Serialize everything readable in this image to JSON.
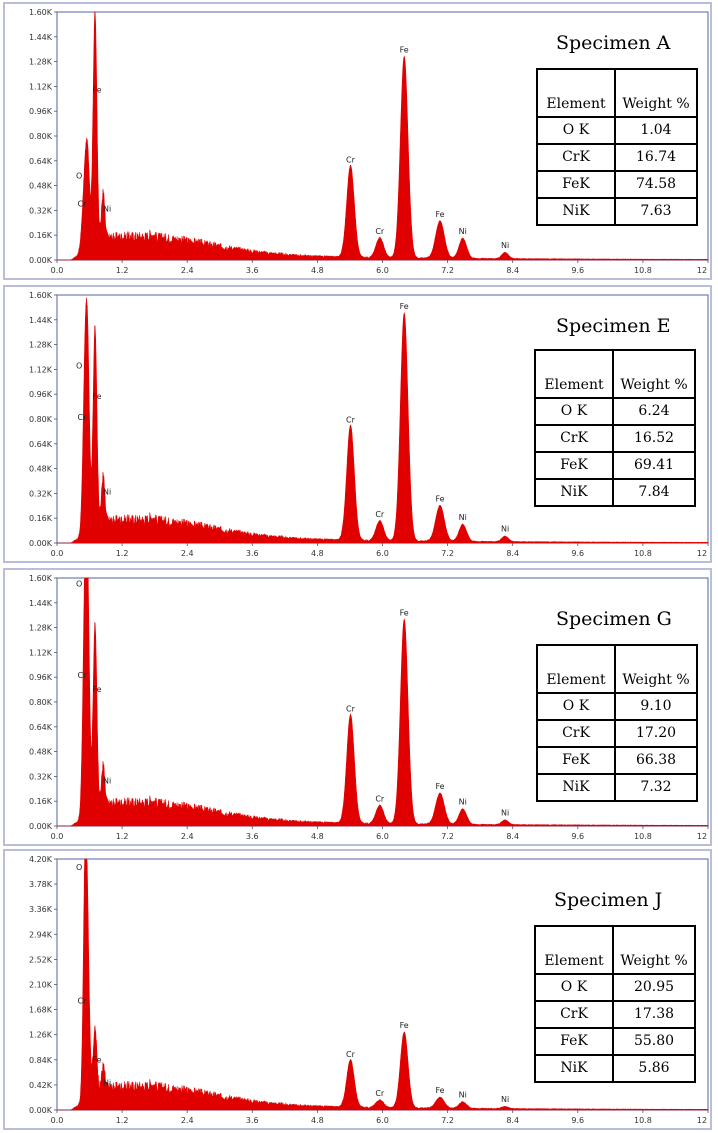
{
  "chart_data": [
    {
      "type": "area",
      "title": "Specimen A",
      "x_ticks": [
        "0.0",
        "1.2",
        "2.4",
        "3.6",
        "4.8",
        "6.0",
        "7.2",
        "8.4",
        "9.6",
        "10.8",
        "12"
      ],
      "y_ticks": [
        "0.00K",
        "0.16K",
        "0.32K",
        "0.48K",
        "0.64K",
        "0.80K",
        "0.96K",
        "1.12K",
        "1.28K",
        "1.44K",
        "1.60K"
      ],
      "xlim": [
        0,
        12
      ],
      "ylim": [
        0,
        1600
      ],
      "spectrum_color": "#e00000",
      "peaks": [
        {
          "label": "O",
          "x": 0.52,
          "y": 460,
          "w": 0.05
        },
        {
          "label": "Cr",
          "x": 0.57,
          "y": 370,
          "w": 0.04
        },
        {
          "label": "Fe",
          "x": 0.7,
          "y": 1500,
          "w": 0.035
        },
        {
          "label": "Ni",
          "x": 0.85,
          "y": 300,
          "w": 0.03
        },
        {
          "label": "Cr",
          "x": 5.41,
          "y": 590,
          "w": 0.07
        },
        {
          "label": "Cr",
          "x": 5.95,
          "y": 130,
          "w": 0.07
        },
        {
          "label": "Fe",
          "x": 6.4,
          "y": 1300,
          "w": 0.07
        },
        {
          "label": "Fe",
          "x": 7.06,
          "y": 240,
          "w": 0.08
        },
        {
          "label": "Ni",
          "x": 7.48,
          "y": 130,
          "w": 0.07
        },
        {
          "label": "Ni",
          "x": 8.26,
          "y": 40,
          "w": 0.06
        }
      ],
      "table": {
        "headers": [
          "Element",
          "Weight %"
        ],
        "rows": [
          [
            "O K",
            "1.04"
          ],
          [
            "CrK",
            "16.74"
          ],
          [
            "FeK",
            "74.58"
          ],
          [
            "NiK",
            "7.63"
          ]
        ]
      }
    },
    {
      "type": "area",
      "title": "Specimen E",
      "x_ticks": [
        "0.0",
        "1.2",
        "2.4",
        "3.6",
        "4.8",
        "6.0",
        "7.2",
        "8.4",
        "9.6",
        "10.8",
        "12"
      ],
      "y_ticks": [
        "0.00K",
        "0.16K",
        "0.32K",
        "0.48K",
        "0.64K",
        "0.80K",
        "0.96K",
        "1.12K",
        "1.28K",
        "1.44K",
        "1.60K"
      ],
      "xlim": [
        0,
        12
      ],
      "ylim": [
        0,
        1600
      ],
      "spectrum_color": "#e00000",
      "peaks": [
        {
          "label": "O",
          "x": 0.52,
          "y": 1060,
          "w": 0.04
        },
        {
          "label": "Cr",
          "x": 0.57,
          "y": 820,
          "w": 0.035
        },
        {
          "label": "Fe",
          "x": 0.7,
          "y": 1290,
          "w": 0.035
        },
        {
          "label": "Ni",
          "x": 0.85,
          "y": 300,
          "w": 0.03
        },
        {
          "label": "Cr",
          "x": 5.41,
          "y": 740,
          "w": 0.07
        },
        {
          "label": "Cr",
          "x": 5.95,
          "y": 130,
          "w": 0.07
        },
        {
          "label": "Fe",
          "x": 6.4,
          "y": 1470,
          "w": 0.07
        },
        {
          "label": "Fe",
          "x": 7.06,
          "y": 230,
          "w": 0.08
        },
        {
          "label": "Ni",
          "x": 7.48,
          "y": 110,
          "w": 0.07
        },
        {
          "label": "Ni",
          "x": 8.26,
          "y": 35,
          "w": 0.06
        }
      ],
      "table": {
        "headers": [
          "Element",
          "Weight %"
        ],
        "rows": [
          [
            "O K",
            "6.24"
          ],
          [
            "CrK",
            "16.52"
          ],
          [
            "FeK",
            "69.41"
          ],
          [
            "NiK",
            "7.84"
          ]
        ]
      }
    },
    {
      "type": "area",
      "title": "Specimen G",
      "x_ticks": [
        "0.0",
        "1.2",
        "2.4",
        "3.6",
        "4.8",
        "6.0",
        "7.2",
        "8.4",
        "9.6",
        "10.8",
        "12"
      ],
      "y_ticks": [
        "0.00K",
        "0.16K",
        "0.32K",
        "0.48K",
        "0.64K",
        "0.80K",
        "0.96K",
        "1.12K",
        "1.28K",
        "1.44K",
        "1.60K"
      ],
      "xlim": [
        0,
        12
      ],
      "ylim": [
        0,
        1600
      ],
      "spectrum_color": "#e00000",
      "peaks": [
        {
          "label": "O",
          "x": 0.52,
          "y": 1480,
          "w": 0.04
        },
        {
          "label": "Cr",
          "x": 0.57,
          "y": 980,
          "w": 0.035
        },
        {
          "label": "Fe",
          "x": 0.7,
          "y": 1200,
          "w": 0.035
        },
        {
          "label": "Ni",
          "x": 0.85,
          "y": 260,
          "w": 0.03
        },
        {
          "label": "Cr",
          "x": 5.41,
          "y": 700,
          "w": 0.07
        },
        {
          "label": "Cr",
          "x": 5.95,
          "y": 120,
          "w": 0.07
        },
        {
          "label": "Fe",
          "x": 6.4,
          "y": 1320,
          "w": 0.07
        },
        {
          "label": "Fe",
          "x": 7.06,
          "y": 200,
          "w": 0.08
        },
        {
          "label": "Ni",
          "x": 7.48,
          "y": 100,
          "w": 0.07
        },
        {
          "label": "Ni",
          "x": 8.26,
          "y": 30,
          "w": 0.06
        }
      ],
      "table": {
        "headers": [
          "Element",
          "Weight %"
        ],
        "rows": [
          [
            "O K",
            "9.10"
          ],
          [
            "CrK",
            "17.20"
          ],
          [
            "FeK",
            "66.38"
          ],
          [
            "NiK",
            "7.32"
          ]
        ]
      }
    },
    {
      "type": "area",
      "title": "Specimen J",
      "x_ticks": [
        "0.0",
        "1.2",
        "2.4",
        "3.6",
        "4.8",
        "6.0",
        "7.2",
        "8.4",
        "9.6",
        "10.8",
        "12"
      ],
      "y_ticks": [
        "0.00K",
        "0.42K",
        "0.84K",
        "1.26K",
        "1.68K",
        "2.10K",
        "2.52K",
        "2.94K",
        "3.36K",
        "3.78K",
        "4.20K"
      ],
      "xlim": [
        0,
        12
      ],
      "ylim": [
        0,
        4200
      ],
      "spectrum_color": "#e00000",
      "peaks": [
        {
          "label": "O",
          "x": 0.52,
          "y": 3850,
          "w": 0.035
        },
        {
          "label": "Cr",
          "x": 0.57,
          "y": 1850,
          "w": 0.035
        },
        {
          "label": "Fe",
          "x": 0.7,
          "y": 1100,
          "w": 0.035
        },
        {
          "label": "Ni",
          "x": 0.85,
          "y": 380,
          "w": 0.03
        },
        {
          "label": "Cr",
          "x": 5.41,
          "y": 790,
          "w": 0.07
        },
        {
          "label": "Cr",
          "x": 5.95,
          "y": 130,
          "w": 0.07
        },
        {
          "label": "Fe",
          "x": 6.4,
          "y": 1270,
          "w": 0.07
        },
        {
          "label": "Fe",
          "x": 7.06,
          "y": 180,
          "w": 0.08
        },
        {
          "label": "Ni",
          "x": 7.48,
          "y": 110,
          "w": 0.07
        },
        {
          "label": "Ni",
          "x": 8.26,
          "y": 35,
          "w": 0.06
        }
      ],
      "table": {
        "headers": [
          "Element",
          "Weight %"
        ],
        "rows": [
          [
            "O K",
            "20.95"
          ],
          [
            "CrK",
            "17.38"
          ],
          [
            "FeK",
            "55.80"
          ],
          [
            "NiK",
            "5.86"
          ]
        ]
      }
    }
  ]
}
